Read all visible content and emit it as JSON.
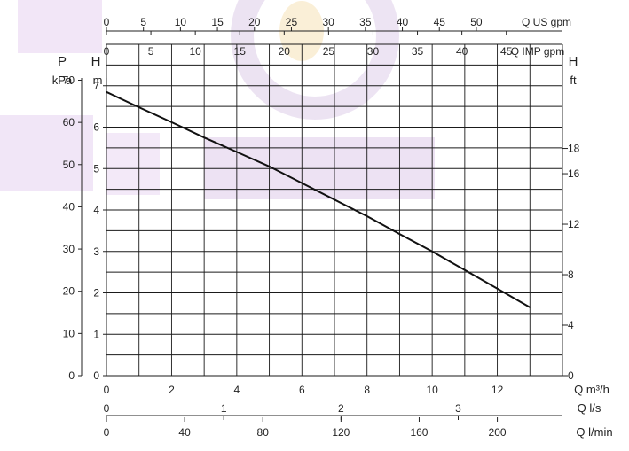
{
  "chart_data": {
    "type": "line",
    "title": "",
    "grid": true,
    "xlabel": "Q m³/h",
    "xlim": [
      0,
      14
    ],
    "x_ticks": [
      0,
      2,
      4,
      6,
      8,
      10,
      12
    ],
    "secondary_x_axes": [
      {
        "label": "Q l/s",
        "ticks": [
          0,
          1,
          2,
          3
        ],
        "max": 3.889
      },
      {
        "label": "Q l/min",
        "ticks": [
          0,
          40,
          80,
          120,
          160,
          200
        ],
        "max": 233.33
      },
      {
        "label": "Q US gpm",
        "ticks": [
          0,
          5,
          10,
          15,
          20,
          25,
          30,
          35,
          40,
          45,
          50
        ],
        "max": 61.64
      },
      {
        "label": "Q IMP gpm",
        "ticks": [
          0,
          5,
          10,
          15,
          20,
          25,
          30,
          35,
          40,
          45
        ],
        "max": 51.32
      }
    ],
    "y_axes": {
      "pressure": {
        "label": "P",
        "unit": "kPa",
        "ticks": [
          0,
          10,
          20,
          30,
          40,
          50,
          60,
          70
        ],
        "max": 78.5
      },
      "head_m": {
        "label": "H",
        "unit": "m",
        "ticks": [
          0,
          1,
          2,
          3,
          4,
          5,
          6,
          7
        ],
        "max": 8
      },
      "head_ft": {
        "label": "H",
        "unit": "ft",
        "ticks": [
          0,
          4,
          8,
          12,
          16,
          18
        ],
        "max": 26.25
      }
    },
    "series": [
      {
        "x": [
          0,
          1,
          2,
          3,
          4,
          5,
          6,
          7,
          8,
          9,
          10,
          11,
          12,
          13
        ],
        "y": [
          6.85,
          6.48,
          6.12,
          5.75,
          5.4,
          5.05,
          4.65,
          4.25,
          3.85,
          3.42,
          3.0,
          2.55,
          2.1,
          1.65
        ]
      }
    ],
    "colors": {
      "curve": "#111111",
      "grid": "#1a1a1a",
      "watermark": "#cdb0dd"
    }
  }
}
